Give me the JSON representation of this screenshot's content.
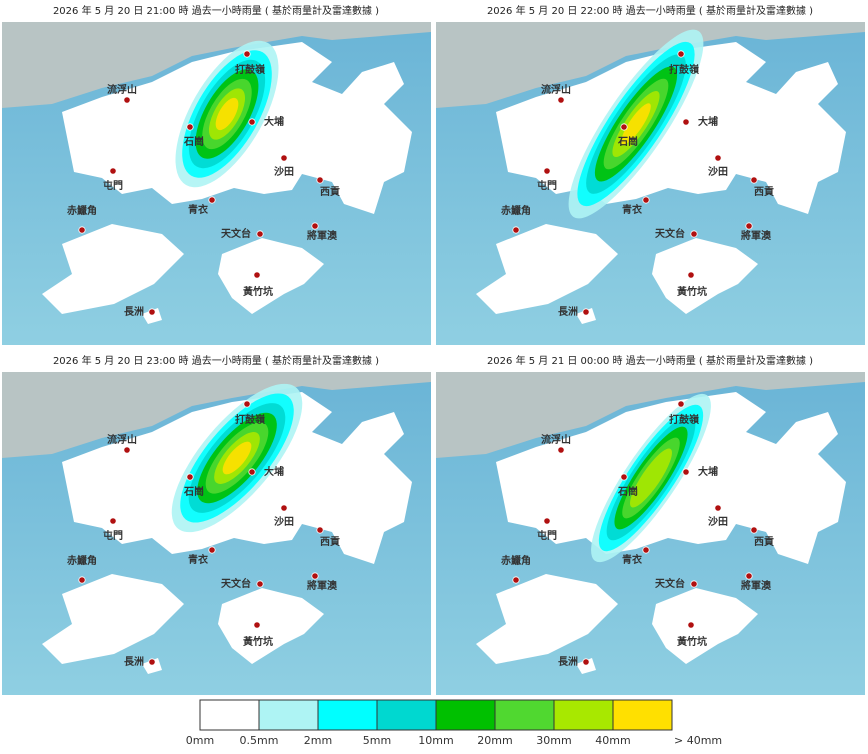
{
  "panels": [
    {
      "title": "2026 年  5  月 20 日 21:00  時   過去一小時雨量 ( 基於雨量計及雷達數據 )"
    },
    {
      "title": "2026 年  5  月 20 日 22:00  時   過去一小時雨量 ( 基於雨量計及雷達數據 )"
    },
    {
      "title": "2026 年  5  月 20 日 23:00  時   過去一小時雨量 ( 基於雨量計及雷達數據 )"
    },
    {
      "title": "2026 年  5  月 21 日 00:00  時   過去一小時雨量 ( 基於雨量計及雷達數據 )"
    }
  ],
  "places": [
    "打鼓嶺",
    "流浮山",
    "大埔",
    "石崗",
    "沙田",
    "屯門",
    "西貢",
    "青衣",
    "赤鱲角",
    "天文台",
    "將軍澳",
    "黃竹坑",
    "長洲"
  ],
  "legend": {
    "labels": [
      "0mm",
      "0.5mm",
      "2mm",
      "5mm",
      "10mm",
      "20mm",
      "30mm",
      "40mm",
      "> 40mm"
    ],
    "colors": [
      "#ffffff",
      "#aef4f4",
      "#00ffff",
      "#00d8d0",
      "#00c000",
      "#50d830",
      "#a8e800",
      "#ffe000"
    ]
  }
}
